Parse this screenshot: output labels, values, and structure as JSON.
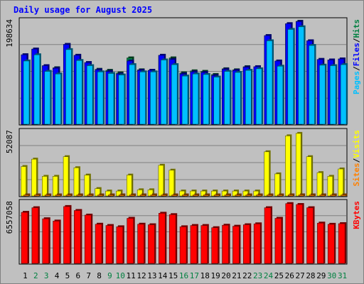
{
  "chart_data": {
    "type": "bar",
    "title": "Daily usage for August 2025",
    "categories": [
      "1",
      "2",
      "3",
      "4",
      "5",
      "6",
      "7",
      "8",
      "9",
      "10",
      "11",
      "12",
      "13",
      "14",
      "15",
      "16",
      "17",
      "18",
      "19",
      "20",
      "21",
      "22",
      "23",
      "24",
      "25",
      "26",
      "27",
      "28",
      "29",
      "30",
      "31"
    ],
    "weekend_days": [
      2,
      3,
      9,
      10,
      16,
      17,
      23,
      24,
      30,
      31
    ],
    "colors": {
      "hits": "#008040",
      "files": "#0000ff",
      "pages": "#00c0ff",
      "visits": "#ffff00",
      "sites": "#ff8000",
      "kbytes": "#ff0000",
      "weekday_label": "#000000",
      "weekend_label": "#008040"
    },
    "panels": [
      {
        "id": "hits",
        "ymax_label": "198634",
        "ymax": 198634,
        "right_labels": [
          {
            "text": "Pages",
            "color": "#00c0ff"
          },
          {
            "text": "/",
            "color": "#000000"
          },
          {
            "text": "Files",
            "color": "#0000ff"
          },
          {
            "text": "/",
            "color": "#000000"
          },
          {
            "text": "Hits",
            "color": "#008040"
          }
        ],
        "series": [
          {
            "name": "Hits",
            "values": [
              134000,
              145000,
              113000,
              109000,
              154000,
              133000,
              119000,
              106000,
              104000,
              99000,
              128000,
              105000,
              104000,
              133000,
              128000,
              99000,
              103000,
              102000,
              96000,
              107000,
              105000,
              111000,
              111000,
              171000,
              122000,
              194000,
              198634,
              161000,
              125000,
              124000,
              126000
            ]
          },
          {
            "name": "Files",
            "values": [
              134000,
              145000,
              113000,
              108000,
              154000,
              133000,
              119000,
              105000,
              102000,
              97000,
              122000,
              104000,
              104000,
              133000,
              125000,
              97000,
              101000,
              100000,
              94000,
              106000,
              104000,
              110000,
              111000,
              171000,
              122000,
              194000,
              198000,
              161000,
              125000,
              124000,
              126000
            ]
          },
          {
            "name": "Pages",
            "values": [
              122000,
              134000,
              102000,
              97000,
              144000,
              123000,
              113000,
              101000,
              98000,
              95000,
              115000,
              101000,
              101000,
              124000,
              115000,
              93000,
              97000,
              96000,
              91000,
              102000,
              100000,
              104000,
              107000,
              161000,
              112000,
              183000,
              188000,
              152000,
              114000,
              113000,
              115000
            ]
          }
        ]
      },
      {
        "id": "visits",
        "ymax_label": "52087",
        "ymax": 52087,
        "right_labels": [
          {
            "text": "Sites",
            "color": "#ff8000"
          },
          {
            "text": "/",
            "color": "#000000"
          },
          {
            "text": "Visits",
            "color": "#ffff00"
          }
        ],
        "series": [
          {
            "name": "Visits",
            "values": [
              24000,
              30000,
              16000,
              16000,
              32000,
              23000,
              17000,
              6000,
              4000,
              4000,
              17000,
              5000,
              5000,
              25000,
              21000,
              4000,
              4000,
              4000,
              4000,
              4000,
              4000,
              4000,
              4000,
              36000,
              18000,
              49000,
              51000,
              32000,
              19000,
              16000,
              22000
            ]
          },
          {
            "name": "Sites",
            "values": [
              600,
              600,
              500,
              500,
              700,
              600,
              500,
              400,
              300,
              300,
              500,
              400,
              400,
              600,
              500,
              300,
              300,
              300,
              300,
              300,
              300,
              300,
              300,
              700,
              500,
              900,
              900,
              700,
              500,
              500,
              500
            ]
          }
        ]
      },
      {
        "id": "kbytes",
        "ymax_label": "6557058",
        "ymax": 6557058,
        "right_labels": [
          {
            "text": "KBytes",
            "color": "#ff0000"
          }
        ],
        "series": [
          {
            "name": "KBytes",
            "values": [
              5550000,
              6050000,
              4850000,
              4600000,
              6180000,
              5750000,
              5250000,
              4260000,
              4120000,
              3980000,
              4900000,
              4260000,
              4200000,
              5450000,
              5300000,
              3980000,
              4120000,
              4120000,
              3880000,
              4150000,
              4040000,
              4200000,
              4300000,
              6050000,
              4900000,
              6500000,
              6400000,
              6050000,
              4380000,
              4250000,
              4320000
            ]
          }
        ]
      }
    ]
  }
}
